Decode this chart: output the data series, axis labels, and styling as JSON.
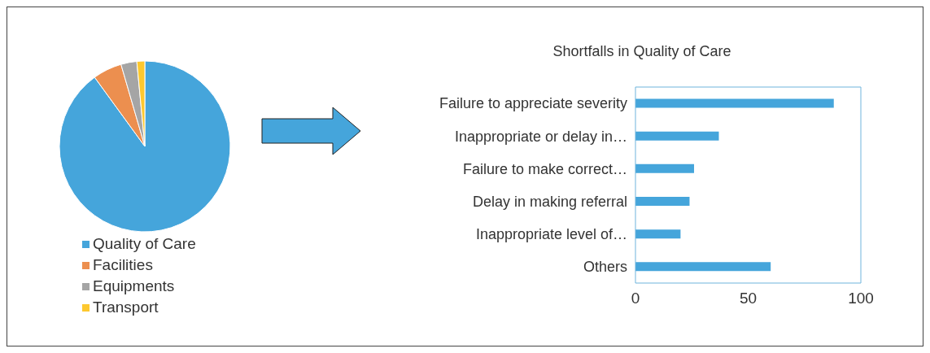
{
  "chart_data": [
    {
      "type": "pie",
      "categories": [
        "Quality of Care",
        "Facilities",
        "Equipments",
        "Transport"
      ],
      "values": [
        90,
        5.5,
        3,
        1.5
      ],
      "colors": [
        "#45a5db",
        "#ec8f4f",
        "#a5a5a5",
        "#fdc82f"
      ],
      "legend": "bottom"
    },
    {
      "type": "bar",
      "orientation": "horizontal",
      "title": "Shortfalls in Quality of Care",
      "categories": [
        "Failure to appreciate severity",
        "Inappropriate or delay in…",
        "Failure to make correct…",
        "Delay in making referral",
        "Inappropriate level of…",
        "Others"
      ],
      "values": [
        88,
        37,
        26,
        24,
        20,
        60
      ],
      "color": "#45a5db",
      "xlim": [
        0,
        100
      ],
      "xticks": [
        0,
        50,
        100
      ],
      "grid": false
    }
  ]
}
